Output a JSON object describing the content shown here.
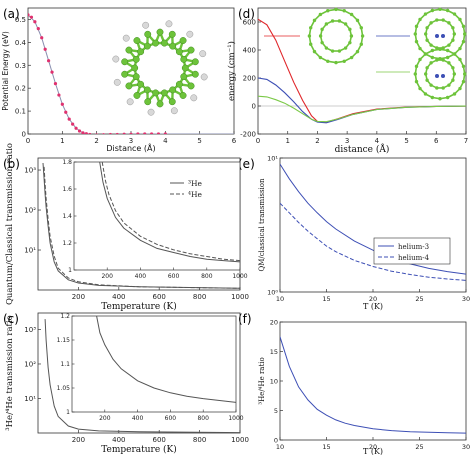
{
  "figure": {
    "panels": [
      "(a)",
      "(b)",
      "(c)",
      "(d)",
      "(e)",
      "(f)"
    ]
  },
  "colors": {
    "red": "#e0262a",
    "blue": "#3d4fb5",
    "green": "#7bc947",
    "gray": "#555555",
    "pink_marker": "#e0306e",
    "carbon": "#6dc33a",
    "hydrogen": "#d8d8d8"
  },
  "chart_data": [
    {
      "id": "a",
      "type": "line",
      "xlabel": "Distance (Å)",
      "ylabel": "Potential Energy (eV)",
      "xlim": [
        0,
        6
      ],
      "ylim": [
        0,
        0.55
      ],
      "xticks": [
        "0",
        "1",
        "2",
        "3",
        "4",
        "5",
        "6"
      ],
      "yticks": [
        "0",
        "0.1",
        "0.2",
        "0.3",
        "0.4",
        "0.5"
      ],
      "series": [
        {
          "style": "curve",
          "x": [
            0,
            0.2,
            0.4,
            0.6,
            0.8,
            1.0,
            1.2,
            1.4,
            1.6,
            1.8,
            2.0,
            2.2,
            2.5,
            3.0,
            4.0,
            5.0,
            6.0
          ],
          "y": [
            0.52,
            0.49,
            0.42,
            0.32,
            0.22,
            0.13,
            0.065,
            0.025,
            0.005,
            -0.002,
            -0.004,
            -0.003,
            -0.002,
            -0.001,
            0,
            0,
            0
          ]
        },
        {
          "style": "markers",
          "x": [
            0,
            0.1,
            0.2,
            0.3,
            0.4,
            0.5,
            0.6,
            0.7,
            0.8,
            0.9,
            1.0,
            1.1,
            1.2,
            1.3,
            1.4,
            1.5,
            1.6,
            1.7,
            1.8,
            2.0,
            2.2,
            2.4,
            2.6,
            2.8,
            3.0,
            3.2,
            3.4,
            3.6,
            3.8,
            4.0
          ],
          "y": [
            0.52,
            0.51,
            0.49,
            0.46,
            0.42,
            0.37,
            0.32,
            0.27,
            0.22,
            0.17,
            0.13,
            0.095,
            0.065,
            0.043,
            0.025,
            0.013,
            0.005,
            0.001,
            -0.002,
            -0.004,
            -0.003,
            -0.002,
            -0.002,
            -0.001,
            -0.001,
            0,
            0,
            0,
            0,
            0
          ]
        }
      ]
    },
    {
      "id": "b",
      "type": "line",
      "yscale": "log",
      "xlabel": "Temperature (K)",
      "ylabel": "Quantum/Classical transmission ratio",
      "xlim": [
        0,
        1000
      ],
      "ylim": [
        1,
        2000
      ],
      "xticks": [
        "200",
        "400",
        "600",
        "800",
        "1000"
      ],
      "yticks": [
        "10¹",
        "10²",
        "10³"
      ],
      "series": [
        {
          "name": "³He",
          "x": [
            25,
            30,
            35,
            40,
            50,
            60,
            80,
            100,
            150,
            200,
            300,
            500,
            1000
          ],
          "y": [
            1500,
            600,
            250,
            120,
            40,
            15,
            5,
            3,
            1.8,
            1.5,
            1.3,
            1.2,
            1.1
          ]
        },
        {
          "name": "⁴He",
          "x": [
            30,
            35,
            40,
            50,
            60,
            80,
            100,
            150,
            200,
            300,
            500,
            1000
          ],
          "y": [
            1200,
            450,
            200,
            60,
            22,
            7,
            3.5,
            2,
            1.6,
            1.35,
            1.2,
            1.1
          ]
        }
      ],
      "inset": {
        "xlim": [
          0,
          1000
        ],
        "ylim": [
          1,
          1.8
        ],
        "xticks": [
          "200",
          "400",
          "600",
          "800",
          "1000"
        ],
        "yticks": [
          "1",
          "1.2",
          "1.4",
          "1.6",
          "1.8"
        ],
        "series": [
          {
            "name": "³He",
            "x": [
              155,
              175,
              200,
              250,
              300,
              400,
              500,
              600,
              700,
              800,
              900,
              1000
            ],
            "y": [
              1.8,
              1.65,
              1.53,
              1.39,
              1.31,
              1.22,
              1.16,
              1.13,
              1.1,
              1.08,
              1.07,
              1.06
            ]
          },
          {
            "name": "⁴He",
            "x": [
              170,
              190,
              210,
              250,
              300,
              400,
              500,
              600,
              700,
              800,
              900,
              1000
            ],
            "y": [
              1.8,
              1.66,
              1.56,
              1.44,
              1.35,
              1.25,
              1.19,
              1.15,
              1.12,
              1.1,
              1.08,
              1.07
            ]
          }
        ]
      }
    },
    {
      "id": "c",
      "type": "line",
      "yscale": "log",
      "xlabel": "Temperature (K)",
      "ylabel": "³He/⁴He transmission ratio",
      "xlim": [
        0,
        1000
      ],
      "ylim": [
        1,
        3000
      ],
      "xticks": [
        "200",
        "400",
        "600",
        "800",
        "1000"
      ],
      "yticks": [
        "10¹",
        "10²",
        "10³"
      ],
      "series": [
        {
          "x": [
            35,
            40,
            50,
            60,
            80,
            100,
            150,
            200,
            300,
            500,
            1000
          ],
          "y": [
            2000,
            500,
            80,
            25,
            6,
            3,
            1.6,
            1.3,
            1.15,
            1.08,
            1.03
          ]
        }
      ],
      "inset": {
        "xlim": [
          0,
          1000
        ],
        "ylim": [
          1,
          1.2
        ],
        "xticks": [
          "200",
          "400",
          "600",
          "800",
          "1000"
        ],
        "yticks": [
          "1",
          "1.05",
          "1.1",
          "1.15",
          "1.2"
        ],
        "series": [
          {
            "x": [
              150,
              170,
              200,
              250,
              300,
              400,
              500,
              600,
              700,
              800,
              900,
              1000
            ],
            "y": [
              1.2,
              1.165,
              1.14,
              1.11,
              1.09,
              1.065,
              1.05,
              1.04,
              1.033,
              1.028,
              1.024,
              1.02
            ]
          }
        ]
      }
    },
    {
      "id": "d",
      "type": "line",
      "xlabel": "distance (Å)",
      "ylabel": "energy (cm⁻¹)",
      "xlim": [
        0,
        7
      ],
      "ylim": [
        -200,
        700
      ],
      "xticks": [
        "0",
        "1",
        "2",
        "3",
        "4",
        "5",
        "6",
        "7"
      ],
      "yticks": [
        "-200",
        "0",
        "200",
        "400",
        "600"
      ],
      "series": [
        {
          "color": "red",
          "x": [
            0,
            0.3,
            0.6,
            0.9,
            1.2,
            1.5,
            1.8,
            2.0,
            2.3,
            2.7,
            3.2,
            4,
            5,
            6,
            7
          ],
          "y": [
            620,
            580,
            470,
            320,
            170,
            40,
            -70,
            -110,
            -115,
            -90,
            -55,
            -22,
            -8,
            -3,
            -1
          ]
        },
        {
          "color": "blue",
          "x": [
            0,
            0.3,
            0.6,
            0.9,
            1.2,
            1.5,
            1.8,
            2.0,
            2.3,
            2.7,
            3.2,
            4,
            5,
            6,
            7
          ],
          "y": [
            200,
            190,
            150,
            95,
            30,
            -40,
            -95,
            -115,
            -120,
            -95,
            -60,
            -25,
            -9,
            -3,
            -1
          ]
        },
        {
          "color": "green",
          "x": [
            0,
            0.3,
            0.6,
            0.9,
            1.2,
            1.5,
            1.8,
            2.0,
            2.3,
            2.7,
            3.2,
            4,
            5,
            6,
            7
          ],
          "y": [
            70,
            65,
            45,
            20,
            -15,
            -55,
            -95,
            -110,
            -112,
            -92,
            -60,
            -25,
            -9,
            -3,
            -1
          ]
        }
      ]
    },
    {
      "id": "e",
      "type": "line",
      "yscale": "log",
      "xlabel": "T (K)",
      "ylabel": "QM/classical transmission",
      "xlim": [
        10,
        30
      ],
      "ylim": [
        1,
        10
      ],
      "xticks": [
        "10",
        "15",
        "20",
        "25",
        "30"
      ],
      "yticks": [
        "10⁰",
        "10¹"
      ],
      "series": [
        {
          "name": "helium-3",
          "style": "solid",
          "x": [
            10,
            11,
            12,
            13,
            14,
            15,
            16,
            18,
            20,
            22,
            24,
            26,
            28,
            30
          ],
          "y": [
            9.0,
            7.0,
            5.6,
            4.6,
            3.9,
            3.35,
            2.95,
            2.4,
            2.05,
            1.8,
            1.62,
            1.5,
            1.42,
            1.36
          ]
        },
        {
          "name": "helium-4",
          "style": "dashed",
          "x": [
            10,
            11,
            12,
            13,
            14,
            15,
            16,
            18,
            20,
            22,
            24,
            26,
            28,
            30
          ],
          "y": [
            4.6,
            3.9,
            3.3,
            2.85,
            2.5,
            2.2,
            2.0,
            1.72,
            1.55,
            1.43,
            1.35,
            1.29,
            1.25,
            1.22
          ]
        }
      ]
    },
    {
      "id": "f",
      "type": "line",
      "xlabel": "T (K)",
      "ylabel": "³He/⁴He ratio",
      "xlim": [
        10,
        30
      ],
      "ylim": [
        0,
        20
      ],
      "xticks": [
        "10",
        "15",
        "20",
        "25",
        "30"
      ],
      "yticks": [
        "0",
        "5",
        "10",
        "15",
        "20"
      ],
      "series": [
        {
          "x": [
            10,
            11,
            12,
            13,
            14,
            15,
            16,
            17,
            18,
            20,
            22,
            24,
            26,
            28,
            30
          ],
          "y": [
            17.5,
            12.5,
            9.0,
            6.8,
            5.2,
            4.2,
            3.4,
            2.85,
            2.45,
            1.9,
            1.6,
            1.4,
            1.3,
            1.22,
            1.17
          ]
        }
      ]
    }
  ]
}
